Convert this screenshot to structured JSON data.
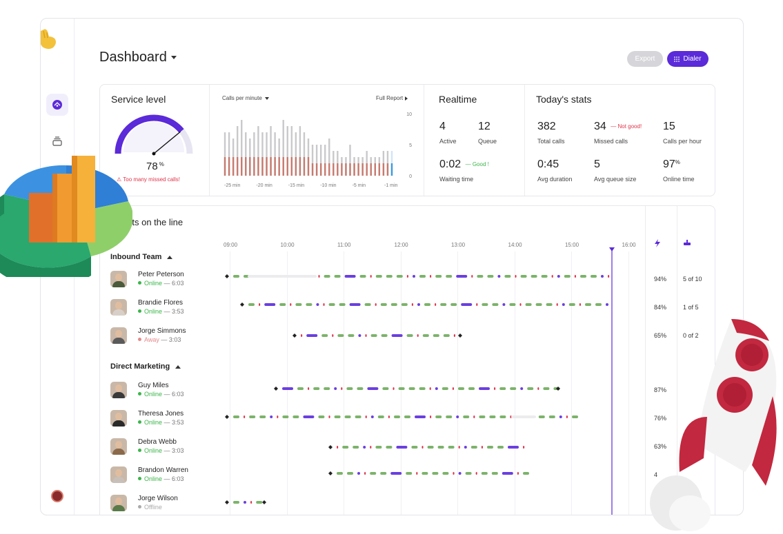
{
  "header": {
    "title": "Dashboard",
    "export_label": "Export",
    "dialer_label": "Dialer"
  },
  "service_level": {
    "title": "Service level",
    "value": "78",
    "unit": "%",
    "warning": "Too many missed calls!",
    "gauge_fraction": 0.78
  },
  "calls_chart": {
    "title": "Calls per minute",
    "report_link": "Full Report",
    "chart_data": {
      "type": "bar",
      "x_ticks": [
        "-25 min",
        "-20 min",
        "-15 min",
        "-10 min",
        "-5 min",
        "-1 min"
      ],
      "y_ticks": [
        "10",
        "5",
        "0"
      ],
      "ylim": [
        0,
        10
      ],
      "totals": [
        7,
        7,
        6,
        8,
        9,
        7,
        6,
        7,
        8,
        7,
        7,
        8,
        7,
        6,
        9,
        8,
        8,
        7,
        8,
        7,
        6,
        5,
        5,
        5,
        5,
        6,
        4,
        4,
        3,
        3,
        5,
        3,
        3,
        3,
        4,
        3,
        3,
        3,
        4,
        4,
        4
      ],
      "answered": [
        3,
        3,
        3,
        3,
        3,
        3,
        3,
        3,
        3,
        3,
        3,
        3,
        3,
        3,
        3,
        3,
        3,
        3,
        3,
        3,
        3,
        2,
        2,
        2,
        2,
        2,
        2,
        2,
        2,
        2,
        2,
        2,
        2,
        2,
        2,
        2,
        2,
        2,
        2,
        2,
        2
      ]
    }
  },
  "realtime": {
    "title": "Realtime",
    "active_value": "4",
    "active_label": "Active",
    "queue_value": "12",
    "queue_label": "Queue",
    "waiting_value": "0:02",
    "waiting_note": "Good !",
    "waiting_label": "Waiting time"
  },
  "today": {
    "title": "Today's stats",
    "total_calls_value": "382",
    "total_calls_label": "Total calls",
    "missed_value": "34",
    "missed_note": "Not good!",
    "missed_label": "Missed calls",
    "per_hour_value": "15",
    "per_hour_label": "Calls per hour",
    "avg_duration_value": "0:45",
    "avg_duration_label": "Avg duration",
    "queue_size_value": "5",
    "queue_size_label": "Avg queue size",
    "online_value": "97",
    "online_unit": "%",
    "online_label": "Online time"
  },
  "agents": {
    "title": "Agents on the line",
    "hours": [
      "09:00",
      "10:00",
      "11:00",
      "12:00",
      "13:00",
      "14:00",
      "15:00",
      "16:00"
    ],
    "teams": [
      "Inbound Team",
      "Direct Marketing"
    ],
    "rows": [
      {
        "name": "Peter Peterson",
        "status": "Online",
        "time": "6:03",
        "pct": "94%",
        "frac": "5 of 10"
      },
      {
        "name": "Brandie Flores",
        "status": "Online",
        "time": "3:53",
        "pct": "84%",
        "frac": "1 of 5"
      },
      {
        "name": "Jorge Simmons",
        "status": "Away",
        "time": "3:03",
        "pct": "65%",
        "frac": "0 of 2"
      },
      {
        "name": "Guy Miles",
        "status": "Online",
        "time": "6:03",
        "pct": "87%",
        "frac": ""
      },
      {
        "name": "Theresa Jones",
        "status": "Online",
        "time": "3:53",
        "pct": "76%",
        "frac": ""
      },
      {
        "name": "Debra Webb",
        "status": "Online",
        "time": "3:03",
        "pct": "63%",
        "frac": ""
      },
      {
        "name": "Brandon Warren",
        "status": "Online",
        "time": "6:03",
        "pct": "4",
        "frac": ""
      },
      {
        "name": "Jorge Wilson",
        "status": "Offline",
        "time": "",
        "pct": "",
        "frac": ""
      }
    ]
  },
  "colors": {
    "accent": "#5b2ad9",
    "green": "#7cb36a",
    "red": "#e0344a",
    "purple": "#6a3fe0",
    "online": "#3bb54a",
    "away": "#e58a8a",
    "offline": "#aaaaaa"
  }
}
